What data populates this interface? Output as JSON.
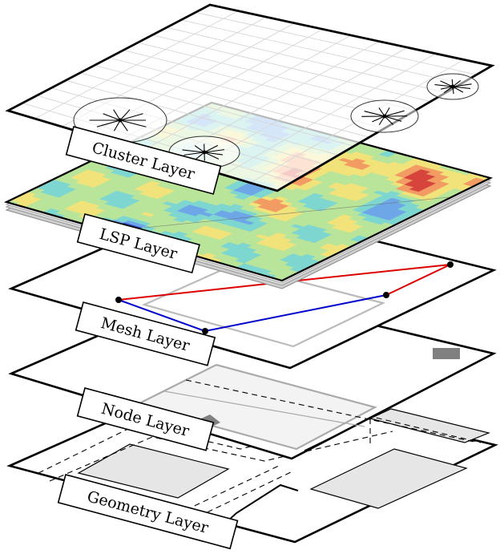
{
  "layers": [
    {
      "id": "cluster",
      "label": "Cluster Layer"
    },
    {
      "id": "lsp",
      "label": "LSP Layer"
    },
    {
      "id": "mesh",
      "label": "Mesh Layer"
    },
    {
      "id": "node",
      "label": "Node Layer"
    },
    {
      "id": "geometry",
      "label": "Geometry Layer"
    }
  ],
  "colors": {
    "plate_stroke": "#000000",
    "plate_fill": "#ffffff",
    "mesh_red_path": "#dd0000",
    "mesh_blue_path": "#0000cc",
    "node_block": "#808080",
    "geometry_room": "#e6e6e6",
    "heatmap_palette": [
      "#3b4cc0",
      "#6ea7e8",
      "#7ed6d0",
      "#b9e59a",
      "#f1e37a",
      "#f29b63",
      "#d7443c"
    ]
  },
  "icons": {
    "cluster_marker": "starburst-icon"
  }
}
